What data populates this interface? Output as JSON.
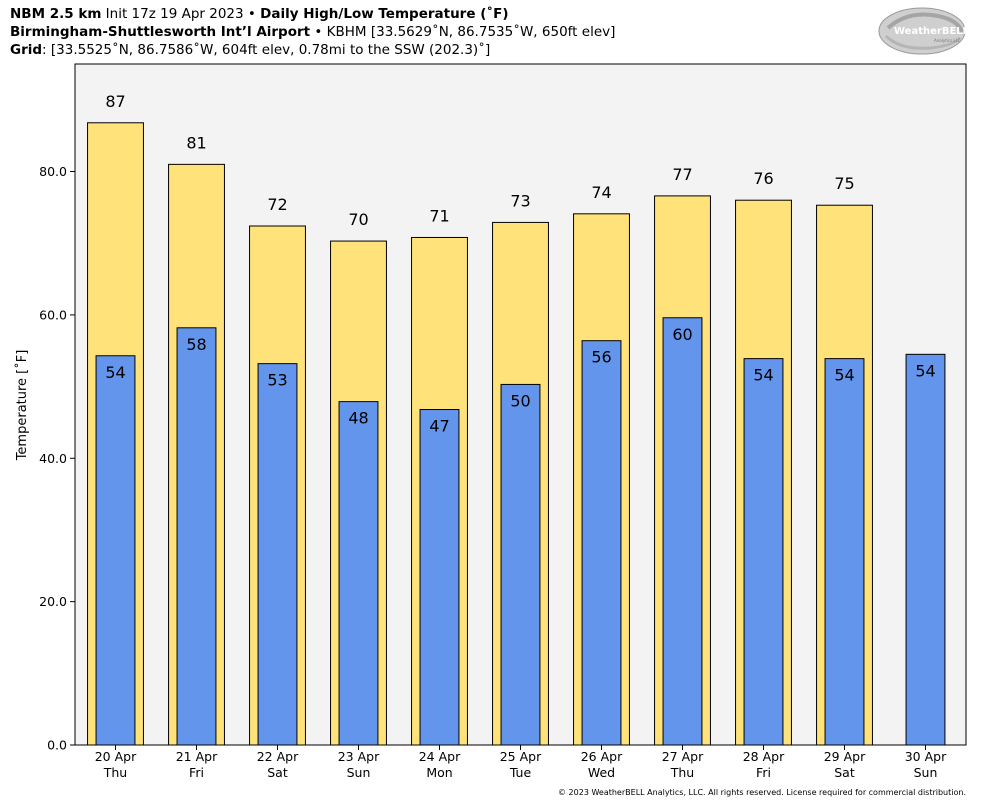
{
  "header": {
    "line1_bold": "NBM 2.5 km",
    "line1_text": " Init 17z 19 Apr 2023 • ",
    "line1_bold2": "Daily High/Low Temperature (˚F)",
    "line2_bold": "Birmingham-Shuttlesworth Int’l Airport",
    "line2_text": " • KBHM [33.5629˚N, 86.7535˚W, 650ft elev]",
    "line3_bold": "Grid",
    "line3_text": ": [33.5525˚N, 86.7586˚W, 604ft elev, 0.78mi to the SSW (202.3)˚]"
  },
  "logo": {
    "text_main": "WeatherBELL",
    "text_small": "Analytics LLC",
    "icon": "swirl-logo-icon"
  },
  "copyright": "© 2023 WeatherBELL Analytics, LLC. All rights reserved. License required for commercial distribution.",
  "colors": {
    "high": "#FFE37A",
    "low": "#6495ED",
    "plot_bg": "#F3F3F3"
  },
  "chart_data": {
    "type": "bar",
    "ylabel": "Temperature [˚F]",
    "ylim": [
      0,
      95
    ],
    "yticks": [
      "0.0",
      "20.0",
      "40.0",
      "60.0",
      "80.0"
    ],
    "grid": false,
    "categories": [
      {
        "date": "20 Apr",
        "day": "Thu"
      },
      {
        "date": "21 Apr",
        "day": "Fri"
      },
      {
        "date": "22 Apr",
        "day": "Sat"
      },
      {
        "date": "23 Apr",
        "day": "Sun"
      },
      {
        "date": "24 Apr",
        "day": "Mon"
      },
      {
        "date": "25 Apr",
        "day": "Tue"
      },
      {
        "date": "26 Apr",
        "day": "Wed"
      },
      {
        "date": "27 Apr",
        "day": "Thu"
      },
      {
        "date": "28 Apr",
        "day": "Fri"
      },
      {
        "date": "29 Apr",
        "day": "Sat"
      },
      {
        "date": "30 Apr",
        "day": "Sun"
      }
    ],
    "series": [
      {
        "key": "high",
        "values": [
          86.8,
          81.0,
          72.4,
          70.3,
          70.8,
          72.9,
          74.1,
          76.6,
          76.0,
          75.3,
          null
        ],
        "labels": [
          "87",
          "81",
          "72",
          "70",
          "71",
          "73",
          "74",
          "77",
          "76",
          "75",
          ""
        ]
      },
      {
        "key": "low",
        "values": [
          54.3,
          58.2,
          53.2,
          47.9,
          46.8,
          50.3,
          56.4,
          59.6,
          53.9,
          53.9,
          54.5
        ],
        "labels": [
          "54",
          "58",
          "53",
          "48",
          "47",
          "50",
          "56",
          "60",
          "54",
          "54",
          "54"
        ]
      }
    ]
  }
}
